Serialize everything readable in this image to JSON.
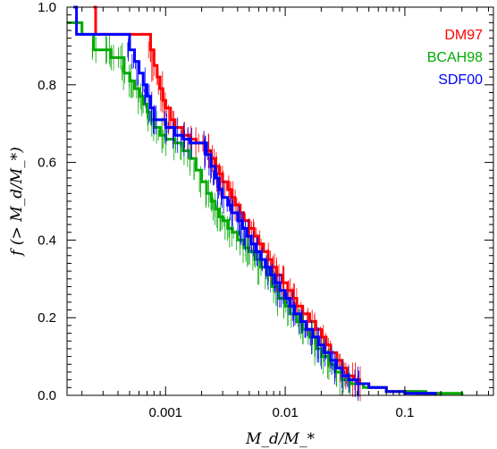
{
  "chart_data": {
    "type": "line",
    "title": "",
    "xlabel": "M_d/M_*",
    "ylabel": "f (> M_d/M_*)",
    "xscale": "log",
    "xlim": [
      0.00015,
      0.55
    ],
    "ylim": [
      0.0,
      1.0
    ],
    "grid": false,
    "legend_position": "top-right",
    "x_ticks": [
      {
        "value": 0.001,
        "label": "0.001"
      },
      {
        "value": 0.01,
        "label": "0.01"
      },
      {
        "value": 0.1,
        "label": "0.1"
      }
    ],
    "y_ticks": [
      {
        "value": 0.0,
        "label": "0.0"
      },
      {
        "value": 0.2,
        "label": "0.2"
      },
      {
        "value": 0.4,
        "label": "0.4"
      },
      {
        "value": 0.6,
        "label": "0.6"
      },
      {
        "value": 0.8,
        "label": "0.8"
      },
      {
        "value": 1.0,
        "label": "1.0"
      }
    ],
    "series": [
      {
        "name": "DM97",
        "color": "#ff0000",
        "points": [
          [
            0.00025,
            1.0
          ],
          [
            0.00026,
            0.93
          ],
          [
            0.0007,
            0.93
          ],
          [
            0.00075,
            0.89
          ],
          [
            0.0008,
            0.85
          ],
          [
            0.00085,
            0.82
          ],
          [
            0.0009,
            0.79
          ],
          [
            0.00095,
            0.76
          ],
          [
            0.001,
            0.74
          ],
          [
            0.0011,
            0.71
          ],
          [
            0.0012,
            0.69
          ],
          [
            0.0014,
            0.67
          ],
          [
            0.0016,
            0.66
          ],
          [
            0.0018,
            0.65
          ],
          [
            0.0021,
            0.65
          ],
          [
            0.0022,
            0.63
          ],
          [
            0.0024,
            0.61
          ],
          [
            0.0026,
            0.59
          ],
          [
            0.0028,
            0.57
          ],
          [
            0.003,
            0.55
          ],
          [
            0.0033,
            0.53
          ],
          [
            0.0036,
            0.51
          ],
          [
            0.0038,
            0.49
          ],
          [
            0.0042,
            0.47
          ],
          [
            0.0045,
            0.45
          ],
          [
            0.005,
            0.43
          ],
          [
            0.0055,
            0.41
          ],
          [
            0.006,
            0.39
          ],
          [
            0.0066,
            0.37
          ],
          [
            0.0072,
            0.35
          ],
          [
            0.0078,
            0.33
          ],
          [
            0.0085,
            0.31
          ],
          [
            0.0095,
            0.29
          ],
          [
            0.0105,
            0.27
          ],
          [
            0.0115,
            0.25
          ],
          [
            0.0125,
            0.23
          ],
          [
            0.014,
            0.21
          ],
          [
            0.016,
            0.19
          ],
          [
            0.018,
            0.17
          ],
          [
            0.02,
            0.15
          ],
          [
            0.022,
            0.13
          ],
          [
            0.024,
            0.11
          ],
          [
            0.027,
            0.09
          ],
          [
            0.03,
            0.07
          ],
          [
            0.033,
            0.05
          ],
          [
            0.037,
            0.04
          ],
          [
            0.042,
            0.03
          ],
          [
            0.05,
            0.02
          ],
          [
            0.07,
            0.01
          ],
          [
            0.13,
            0.005
          ],
          [
            0.2,
            0.0
          ]
        ]
      },
      {
        "name": "BCAH98",
        "color": "#00aa00",
        "points": [
          [
            0.00015,
            0.96
          ],
          [
            0.0002,
            0.96
          ],
          [
            0.0002,
            0.93
          ],
          [
            0.00025,
            0.93
          ],
          [
            0.00025,
            0.89
          ],
          [
            0.00033,
            0.89
          ],
          [
            0.00035,
            0.87
          ],
          [
            0.00042,
            0.87
          ],
          [
            0.00045,
            0.83
          ],
          [
            0.0005,
            0.81
          ],
          [
            0.00055,
            0.79
          ],
          [
            0.0006,
            0.77
          ],
          [
            0.00065,
            0.75
          ],
          [
            0.0007,
            0.73
          ],
          [
            0.00075,
            0.71
          ],
          [
            0.0008,
            0.69
          ],
          [
            0.0009,
            0.67
          ],
          [
            0.001,
            0.66
          ],
          [
            0.0012,
            0.65
          ],
          [
            0.0014,
            0.63
          ],
          [
            0.0016,
            0.61
          ],
          [
            0.0018,
            0.58
          ],
          [
            0.002,
            0.55
          ],
          [
            0.0022,
            0.52
          ],
          [
            0.0024,
            0.5
          ],
          [
            0.0026,
            0.48
          ],
          [
            0.0028,
            0.46
          ],
          [
            0.003,
            0.45
          ],
          [
            0.0033,
            0.43
          ],
          [
            0.0036,
            0.42
          ],
          [
            0.004,
            0.4
          ],
          [
            0.0045,
            0.38
          ],
          [
            0.005,
            0.37
          ],
          [
            0.0056,
            0.35
          ],
          [
            0.0062,
            0.33
          ],
          [
            0.007,
            0.31
          ],
          [
            0.0078,
            0.28
          ],
          [
            0.0088,
            0.25
          ],
          [
            0.01,
            0.23
          ],
          [
            0.011,
            0.21
          ],
          [
            0.0125,
            0.19
          ],
          [
            0.014,
            0.17
          ],
          [
            0.016,
            0.15
          ],
          [
            0.018,
            0.12
          ],
          [
            0.02,
            0.1
          ],
          [
            0.023,
            0.08
          ],
          [
            0.026,
            0.06
          ],
          [
            0.03,
            0.04
          ],
          [
            0.035,
            0.03
          ],
          [
            0.045,
            0.02
          ],
          [
            0.07,
            0.01
          ],
          [
            0.15,
            0.005
          ],
          [
            0.3,
            0.0
          ]
        ]
      },
      {
        "name": "SDF00",
        "color": "#0000ff",
        "points": [
          [
            0.00017,
            1.0
          ],
          [
            0.00018,
            0.93
          ],
          [
            0.00045,
            0.93
          ],
          [
            0.0005,
            0.89
          ],
          [
            0.00055,
            0.86
          ],
          [
            0.0006,
            0.83
          ],
          [
            0.00065,
            0.8
          ],
          [
            0.0007,
            0.77
          ],
          [
            0.00075,
            0.74
          ],
          [
            0.0008,
            0.71
          ],
          [
            0.001,
            0.69
          ],
          [
            0.0012,
            0.67
          ],
          [
            0.0014,
            0.66
          ],
          [
            0.0016,
            0.65
          ],
          [
            0.0021,
            0.65
          ],
          [
            0.0022,
            0.62
          ],
          [
            0.0024,
            0.59
          ],
          [
            0.0026,
            0.56
          ],
          [
            0.0028,
            0.53
          ],
          [
            0.003,
            0.51
          ],
          [
            0.0033,
            0.49
          ],
          [
            0.0036,
            0.47
          ],
          [
            0.004,
            0.45
          ],
          [
            0.0044,
            0.43
          ],
          [
            0.0048,
            0.41
          ],
          [
            0.0052,
            0.39
          ],
          [
            0.0057,
            0.37
          ],
          [
            0.0062,
            0.35
          ],
          [
            0.0068,
            0.33
          ],
          [
            0.0075,
            0.31
          ],
          [
            0.0082,
            0.29
          ],
          [
            0.009,
            0.27
          ],
          [
            0.01,
            0.25
          ],
          [
            0.011,
            0.23
          ],
          [
            0.012,
            0.21
          ],
          [
            0.0135,
            0.19
          ],
          [
            0.015,
            0.17
          ],
          [
            0.017,
            0.15
          ],
          [
            0.019,
            0.13
          ],
          [
            0.021,
            0.11
          ],
          [
            0.024,
            0.09
          ],
          [
            0.027,
            0.07
          ],
          [
            0.03,
            0.05
          ],
          [
            0.034,
            0.04
          ],
          [
            0.04,
            0.03
          ],
          [
            0.05,
            0.02
          ],
          [
            0.07,
            0.01
          ],
          [
            0.1,
            0.005
          ],
          [
            0.18,
            0.0
          ]
        ]
      }
    ]
  }
}
